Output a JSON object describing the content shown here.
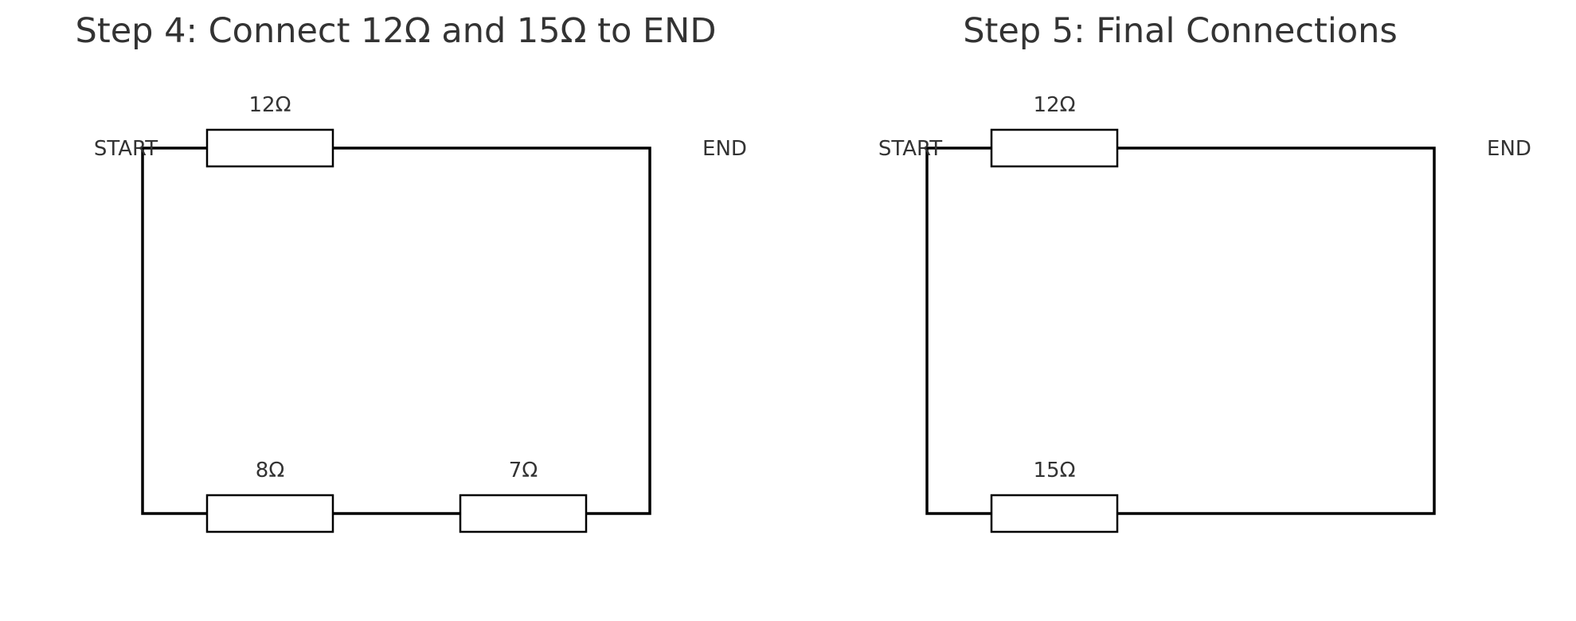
{
  "panels": [
    {
      "title": "Step 4: Connect 12Ω and 15Ω to END",
      "start_label": "START",
      "end_label": "END",
      "resistors": {
        "top": "12Ω",
        "bottom_left": "8Ω",
        "bottom_right": "7Ω"
      }
    },
    {
      "title": "Step 5: Final Connections",
      "start_label": "START",
      "end_label": "END",
      "resistors": {
        "top": "12Ω",
        "bottom_left": "15Ω"
      }
    }
  ]
}
